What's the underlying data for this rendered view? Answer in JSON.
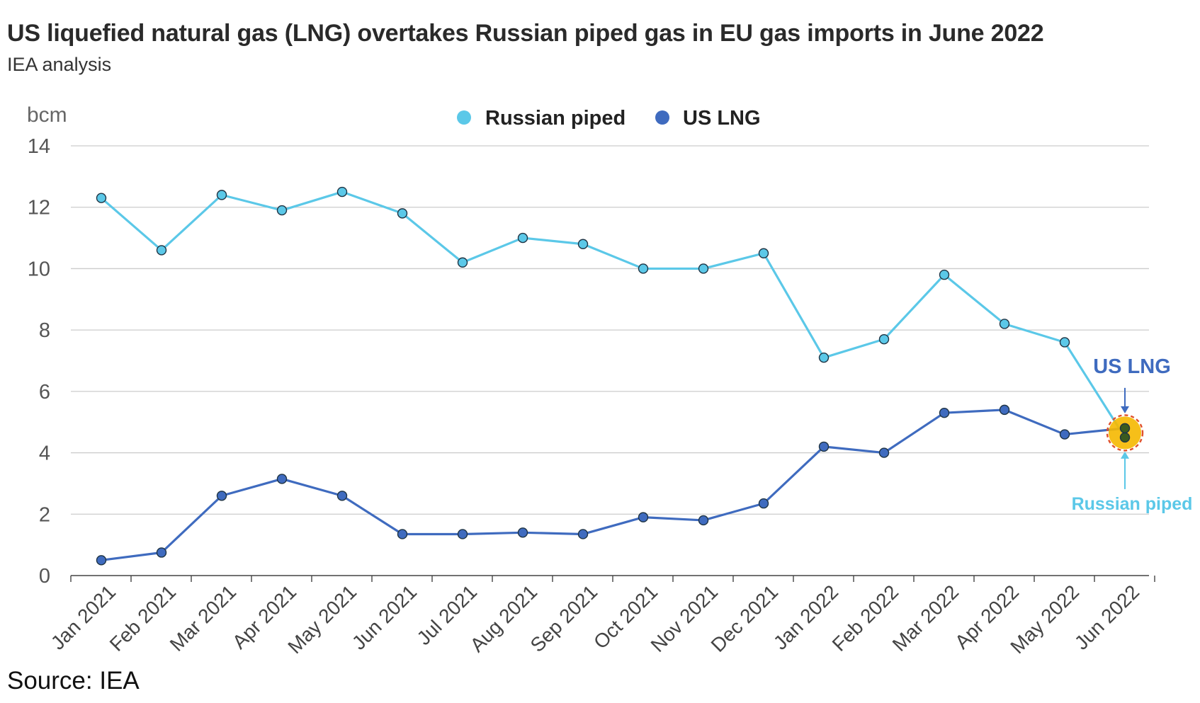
{
  "title": "US liquefied natural gas (LNG) overtakes Russian piped gas in EU gas imports in June 2022",
  "subtitle": "IEA analysis",
  "source": "Source: IEA",
  "colors": {
    "russian": "#5bc8e8",
    "us_lng": "#3f6bbf",
    "grid": "#cccccc",
    "axis": "#444444",
    "highlight": "#f5b800",
    "highlight_ring": "#e0502a",
    "marker_dark": "#3a5a1e"
  },
  "chart_data": {
    "type": "line",
    "title": "US liquefied natural gas (LNG) overtakes Russian piped gas in EU gas imports in June 2022",
    "ylabel": "bcm",
    "xlabel": "",
    "ylim": [
      0,
      14
    ],
    "yticks": [
      0,
      2,
      4,
      6,
      8,
      10,
      12,
      14
    ],
    "grid": true,
    "legend_position": "top-center",
    "categories": [
      "Jan 2021",
      "Feb 2021",
      "Mar 2021",
      "Apr 2021",
      "May 2021",
      "Jun 2021",
      "Jul 2021",
      "Aug 2021",
      "Sep 2021",
      "Oct 2021",
      "Nov 2021",
      "Dec 2021",
      "Jan 2022",
      "Feb 2022",
      "Mar 2022",
      "Apr 2022",
      "May 2022",
      "Jun 2022"
    ],
    "series": [
      {
        "name": "Russian piped",
        "values": [
          12.3,
          10.6,
          12.4,
          11.9,
          12.5,
          11.8,
          10.2,
          11.0,
          10.8,
          10.0,
          10.0,
          10.5,
          7.1,
          7.7,
          9.8,
          8.2,
          7.6,
          4.5
        ]
      },
      {
        "name": "US LNG",
        "values": [
          0.5,
          0.75,
          2.6,
          3.15,
          2.6,
          1.35,
          1.35,
          1.4,
          1.35,
          1.9,
          1.8,
          2.35,
          4.2,
          4.0,
          5.3,
          5.4,
          4.6,
          4.8
        ]
      }
    ],
    "annotations": [
      {
        "text": "US LNG",
        "series": "US LNG",
        "category": "Jun 2022",
        "position": "above"
      },
      {
        "text": "Russian piped",
        "series": "Russian piped",
        "category": "Jun 2022",
        "position": "below"
      }
    ]
  }
}
